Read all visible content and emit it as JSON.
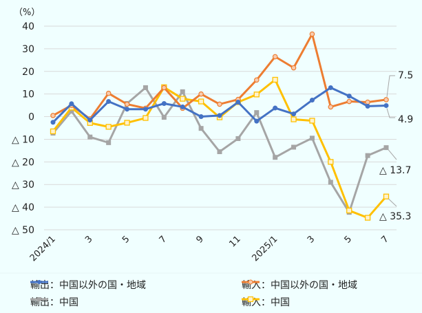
{
  "chart_data": {
    "type": "line",
    "title": "",
    "unit_label": "（%）",
    "xlabel": "",
    "ylabel": "%",
    "ylim": [
      -50,
      40
    ],
    "yticks": [
      40,
      30,
      20,
      10,
      0,
      -10,
      -20,
      -30,
      -40,
      -50
    ],
    "ytick_labels": [
      "40",
      "30",
      "20",
      "10",
      "0",
      "△ 10",
      "△ 20",
      "△ 30",
      "△ 40",
      "△ 50"
    ],
    "grid": true,
    "legend_position": "bottom",
    "x": [
      "2024/1",
      "2024/2",
      "2024/3",
      "2024/4",
      "2024/5",
      "2024/6",
      "2024/7",
      "2024/8",
      "2024/9",
      "2024/10",
      "2024/11",
      "2024/12",
      "2025/1",
      "2025/2",
      "2025/3",
      "2025/4",
      "2025/5",
      "2025/6",
      "2025/7"
    ],
    "xtick_labels": [
      {
        "index": 0,
        "label": "2024/1"
      },
      {
        "index": 2,
        "label": "3"
      },
      {
        "index": 4,
        "label": "5"
      },
      {
        "index": 6,
        "label": "7"
      },
      {
        "index": 8,
        "label": "9"
      },
      {
        "index": 10,
        "label": "11"
      },
      {
        "index": 12,
        "label": "2025/1"
      },
      {
        "index": 14,
        "label": "3"
      },
      {
        "index": 16,
        "label": "5"
      },
      {
        "index": 18,
        "label": "7"
      }
    ],
    "series": [
      {
        "name": "輸出：中国以外の国・地域",
        "color": "#4472c4",
        "marker": "circle-filled",
        "values": [
          -2.5,
          5.7,
          -1.5,
          6.7,
          3.3,
          3.3,
          5.8,
          4.3,
          0.0,
          0.5,
          6.4,
          -2.0,
          3.8,
          1.2,
          7.3,
          12.8,
          9.1,
          4.6,
          4.9
        ]
      },
      {
        "name": "輸入：中国以外の国・地域",
        "color": "#ed7d31",
        "marker": "circle-open",
        "values": [
          0.5,
          5.0,
          -1.0,
          10.3,
          5.5,
          3.7,
          12.8,
          3.7,
          10.0,
          5.5,
          7.6,
          16.2,
          26.5,
          21.6,
          36.5,
          4.3,
          6.7,
          6.4,
          7.5
        ]
      },
      {
        "name": "輸出：中国",
        "color": "#a5a5a5",
        "marker": "square-filled",
        "values": [
          -7.3,
          2.4,
          -9.0,
          -11.5,
          5.8,
          12.8,
          -0.3,
          11.0,
          -5.2,
          -15.5,
          -9.7,
          1.8,
          -18.0,
          -13.5,
          -9.5,
          -29.0,
          -42.3,
          -17.2,
          -13.7
        ]
      },
      {
        "name": "輸入：中国",
        "color": "#ffc000",
        "marker": "square-open",
        "values": [
          -6.5,
          4.0,
          -2.8,
          -4.5,
          -2.7,
          -0.6,
          13.0,
          7.9,
          6.7,
          -0.3,
          6.4,
          9.8,
          16.3,
          -1.2,
          -1.8,
          -20.0,
          -41.5,
          -44.7,
          -35.3
        ]
      }
    ],
    "annotations": [
      {
        "series": "輸入：中国以外の国・地域",
        "label": "7.5"
      },
      {
        "series": "輸出：中国以外の国・地域",
        "label": "4.9"
      },
      {
        "series": "輸出：中国",
        "label": "△ 13.7"
      },
      {
        "series": "輸入：中国",
        "label": "△ 35.3"
      }
    ]
  },
  "legend": {
    "items": [
      {
        "label": "輸出：中国以外の国・地域",
        "color": "#4472c4"
      },
      {
        "label": "輸入：中国以外の国・地域",
        "color": "#ed7d31"
      },
      {
        "label": "輸出：中国",
        "color": "#a5a5a5"
      },
      {
        "label": "輸入：中国",
        "color": "#ffc000"
      }
    ]
  }
}
